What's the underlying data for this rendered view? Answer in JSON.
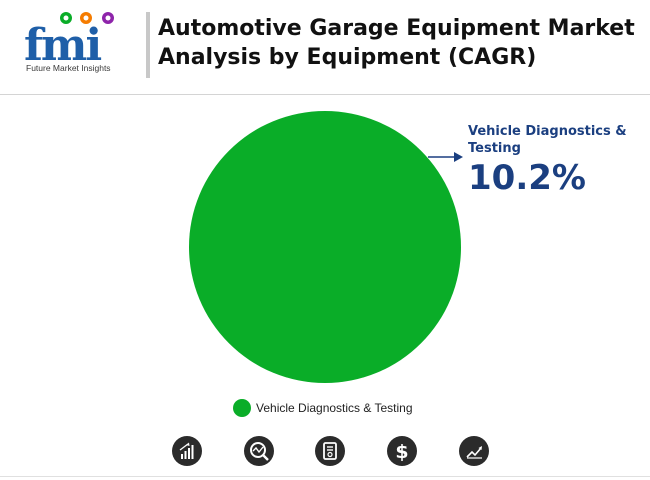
{
  "header": {
    "title": "Automotive Garage Equipment Market Analysis by Equipment (CAGR)",
    "logo_text": "Future Market Insights",
    "logo_mark": "fmi"
  },
  "chart_data": {
    "type": "pie",
    "title": "Automotive Garage Equipment Market Analysis by Equipment (CAGR)",
    "categories": [
      "Vehicle Diagnostics & Testing"
    ],
    "values": [
      10.2
    ],
    "value_labels": [
      "10.2%"
    ],
    "colors": [
      "#0aad28"
    ],
    "legend": {
      "position": "bottom",
      "entries": [
        "Vehicle Diagnostics & Testing"
      ]
    }
  },
  "callout": {
    "label": "Vehicle Diagnostics & Testing",
    "value": "10.2%",
    "color": "#1b3f80"
  },
  "footer_icons": [
    "bar-chart-icon",
    "magnify-chart-icon",
    "report-icon",
    "dollar-icon",
    "trend-line-icon"
  ]
}
